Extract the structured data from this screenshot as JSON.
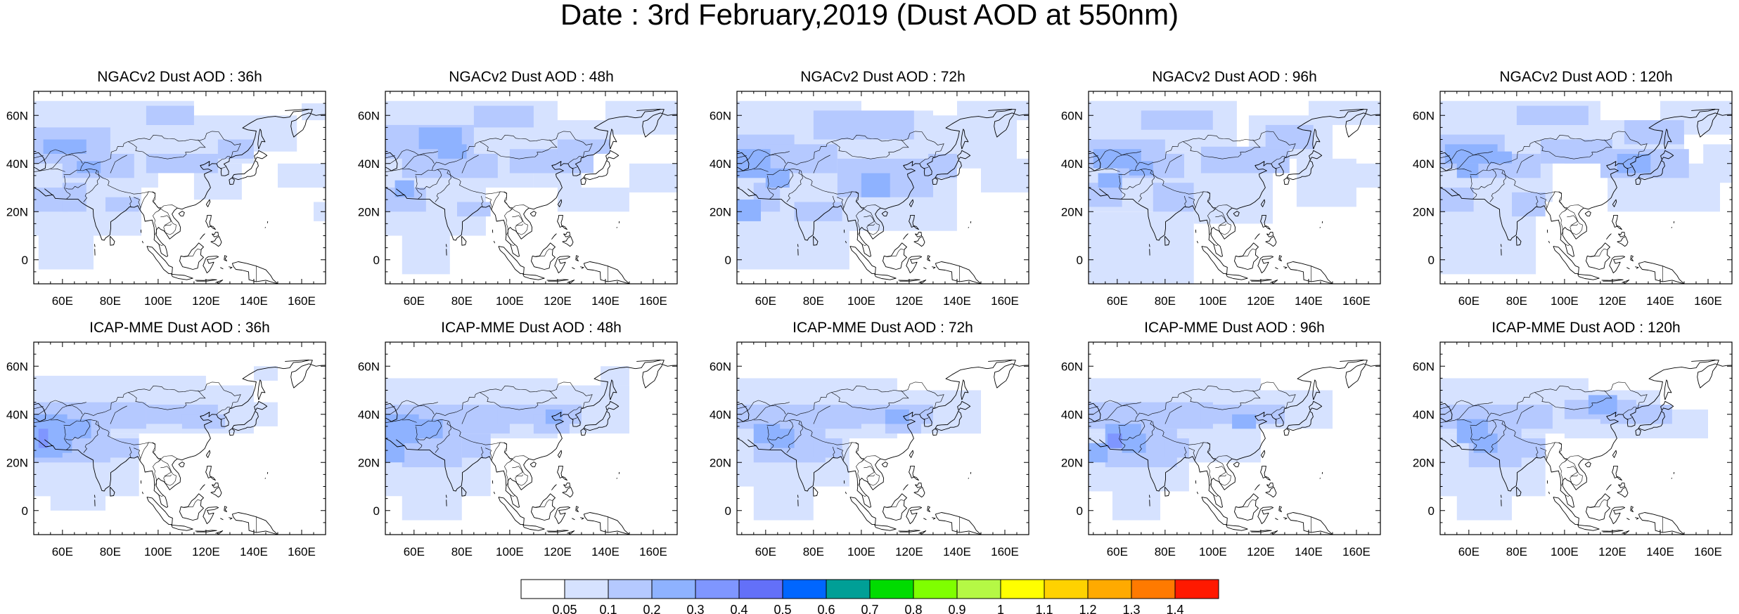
{
  "title": "Date : 3rd February,2019 (Dust AOD at 550nm)",
  "panels": [
    {
      "title": "NGACv2 Dust AOD : 36h",
      "model": "NGACv2",
      "lead_hours": 36
    },
    {
      "title": "NGACv2 Dust AOD : 48h",
      "model": "NGACv2",
      "lead_hours": 48
    },
    {
      "title": "NGACv2 Dust AOD : 72h",
      "model": "NGACv2",
      "lead_hours": 72
    },
    {
      "title": "NGACv2 Dust AOD : 96h",
      "model": "NGACv2",
      "lead_hours": 96
    },
    {
      "title": "NGACv2 Dust AOD : 120h",
      "model": "NGACv2",
      "lead_hours": 120
    },
    {
      "title": "ICAP-MME Dust AOD : 36h",
      "model": "ICAP-MME",
      "lead_hours": 36
    },
    {
      "title": "ICAP-MME Dust AOD : 48h",
      "model": "ICAP-MME",
      "lead_hours": 48
    },
    {
      "title": "ICAP-MME Dust AOD : 72h",
      "model": "ICAP-MME",
      "lead_hours": 72
    },
    {
      "title": "ICAP-MME Dust AOD : 96h",
      "model": "ICAP-MME",
      "lead_hours": 96
    },
    {
      "title": "ICAP-MME Dust AOD : 120h",
      "model": "ICAP-MME",
      "lead_hours": 120
    }
  ],
  "map_extent": {
    "lon": [
      48,
      170
    ],
    "lat": [
      -10,
      70
    ]
  },
  "lon_ticks": [
    "60E",
    "80E",
    "100E",
    "120E",
    "140E",
    "160E"
  ],
  "lat_ticks": [
    "60N",
    "40N",
    "20N",
    "0"
  ],
  "colorbar": {
    "labels": [
      "0.05",
      "0.1",
      "0.2",
      "0.3",
      "0.4",
      "0.5",
      "0.6",
      "0.7",
      "0.8",
      "0.9",
      "1",
      "1.1",
      "1.2",
      "1.3",
      "1.4"
    ],
    "colors": [
      "#ffffff",
      "#d6e2ff",
      "#b5c9ff",
      "#8eb2ff",
      "#7f96ff",
      "#6370f8",
      "#0066ff",
      "#009f96",
      "#00dc00",
      "#7fff00",
      "#b5f845",
      "#ffff00",
      "#ffd200",
      "#ffaa00",
      "#ff7a00",
      "#ff1900"
    ]
  },
  "chart_data": {
    "type": "heatmap",
    "variable": "Dust AOD at 550nm",
    "shaded_levels_present": [
      "0.1",
      "0.2",
      "0.3",
      "0.4"
    ]
  }
}
